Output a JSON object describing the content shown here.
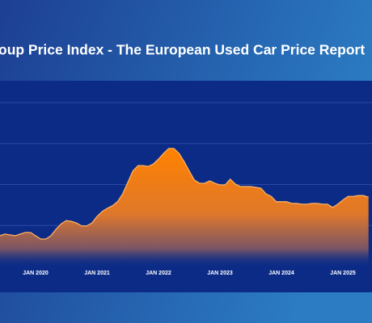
{
  "chart_data": {
    "type": "area",
    "title": "oup Price Index - The European Used Car Price Report",
    "categories": [
      null,
      null,
      null,
      null,
      null,
      null,
      null,
      "JAN 2020",
      null,
      null,
      null,
      null,
      null,
      null,
      null,
      null,
      null,
      null,
      null,
      "JAN 2021",
      null,
      null,
      null,
      null,
      null,
      null,
      null,
      null,
      null,
      null,
      null,
      "JAN 2022",
      null,
      null,
      null,
      null,
      null,
      null,
      null,
      null,
      null,
      null,
      null,
      "JAN 2023",
      null,
      null,
      null,
      null,
      null,
      null,
      null,
      null,
      null,
      null,
      null,
      "JAN 2024",
      null,
      null,
      null,
      null,
      null,
      null,
      null,
      null,
      null,
      null,
      null,
      "JAN 2025",
      null,
      null,
      null,
      null,
      null
    ],
    "values": [
      0.75,
      0.79,
      0.77,
      0.75,
      0.79,
      0.83,
      0.83,
      0.75,
      0.67,
      0.67,
      0.75,
      0.91,
      1.04,
      1.12,
      1.1,
      1.06,
      0.99,
      0.99,
      1.06,
      1.22,
      1.34,
      1.42,
      1.48,
      1.58,
      1.77,
      2.05,
      2.33,
      2.46,
      2.46,
      2.44,
      2.5,
      2.62,
      2.76,
      2.88,
      2.88,
      2.76,
      2.56,
      2.33,
      2.11,
      2.03,
      2.03,
      2.09,
      2.03,
      1.99,
      1.99,
      2.13,
      2.01,
      1.95,
      1.95,
      1.95,
      1.93,
      1.91,
      1.77,
      1.71,
      1.58,
      1.58,
      1.58,
      1.54,
      1.54,
      1.52,
      1.52,
      1.54,
      1.54,
      1.52,
      1.52,
      1.44,
      1.52,
      1.62,
      1.71,
      1.71,
      1.73,
      1.73,
      1.69
    ],
    "color": "#ff8000",
    "ylim": [
      0,
      4
    ],
    "yticks": [
      1,
      2,
      3,
      4
    ],
    "grid": true
  }
}
